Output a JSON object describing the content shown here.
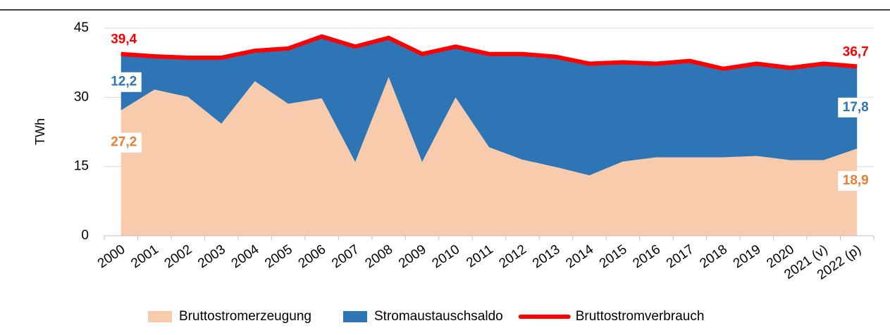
{
  "chart_data": {
    "type": "stacked_area_line",
    "y_label": "TWh",
    "categories": [
      "2000",
      "2001",
      "2002",
      "2003",
      "2004",
      "2005",
      "2006",
      "2007",
      "2008",
      "2009",
      "2010",
      "2011",
      "2012",
      "2013",
      "2014",
      "2015",
      "2016",
      "2017",
      "2018",
      "2019",
      "2020",
      "2021 (v)",
      "2022 (p)"
    ],
    "series": [
      {
        "name": "Bruttostromerzeugung",
        "color": "#f8cbad",
        "label_color": "#ed7d31",
        "kind": "area",
        "values": [
          27.2,
          31.7,
          30.1,
          24.3,
          33.5,
          28.6,
          29.8,
          16.0,
          34.4,
          16.0,
          30.0,
          19.2,
          16.5,
          14.9,
          13.1,
          16.1,
          17.0,
          17.0,
          17.0,
          17.3,
          16.4,
          16.4,
          18.9
        ],
        "value_labels": [
          "27,2",
          null,
          null,
          null,
          null,
          null,
          null,
          null,
          null,
          null,
          null,
          null,
          null,
          null,
          null,
          null,
          null,
          null,
          null,
          null,
          null,
          null,
          "18,9"
        ]
      },
      {
        "name": "Stromaustauschsaldo",
        "color": "#2e75b6",
        "label_color": "#2e75b6",
        "kind": "area",
        "values": [
          12.2,
          7.2,
          8.5,
          14.3,
          6.6,
          12.0,
          13.4,
          25.0,
          8.5,
          23.4,
          11.0,
          20.2,
          22.9,
          23.9,
          24.2,
          21.5,
          20.3,
          20.9,
          19.2,
          20.0,
          20.0,
          20.9,
          17.8
        ],
        "value_labels": [
          "12,2",
          null,
          null,
          null,
          null,
          null,
          null,
          null,
          null,
          null,
          null,
          null,
          null,
          null,
          null,
          null,
          null,
          null,
          null,
          null,
          null,
          null,
          "17,8"
        ]
      },
      {
        "name": "Bruttostromverbrauch",
        "color": "#ff0000",
        "label_color": "#ff0000",
        "kind": "line",
        "values": [
          39.4,
          38.9,
          38.6,
          38.6,
          40.1,
          40.6,
          43.2,
          41.0,
          42.9,
          39.4,
          41.0,
          39.4,
          39.4,
          38.8,
          37.3,
          37.6,
          37.3,
          37.9,
          36.2,
          37.3,
          36.4,
          37.3,
          36.7
        ],
        "value_labels": [
          "39,4",
          null,
          null,
          null,
          null,
          null,
          null,
          null,
          null,
          null,
          null,
          null,
          null,
          null,
          null,
          null,
          null,
          null,
          null,
          null,
          null,
          null,
          "36,7"
        ]
      }
    ],
    "ylim": [
      0,
      45
    ],
    "yticks": [
      0,
      15,
      30,
      45
    ],
    "grid": true,
    "legend": "bottom"
  }
}
